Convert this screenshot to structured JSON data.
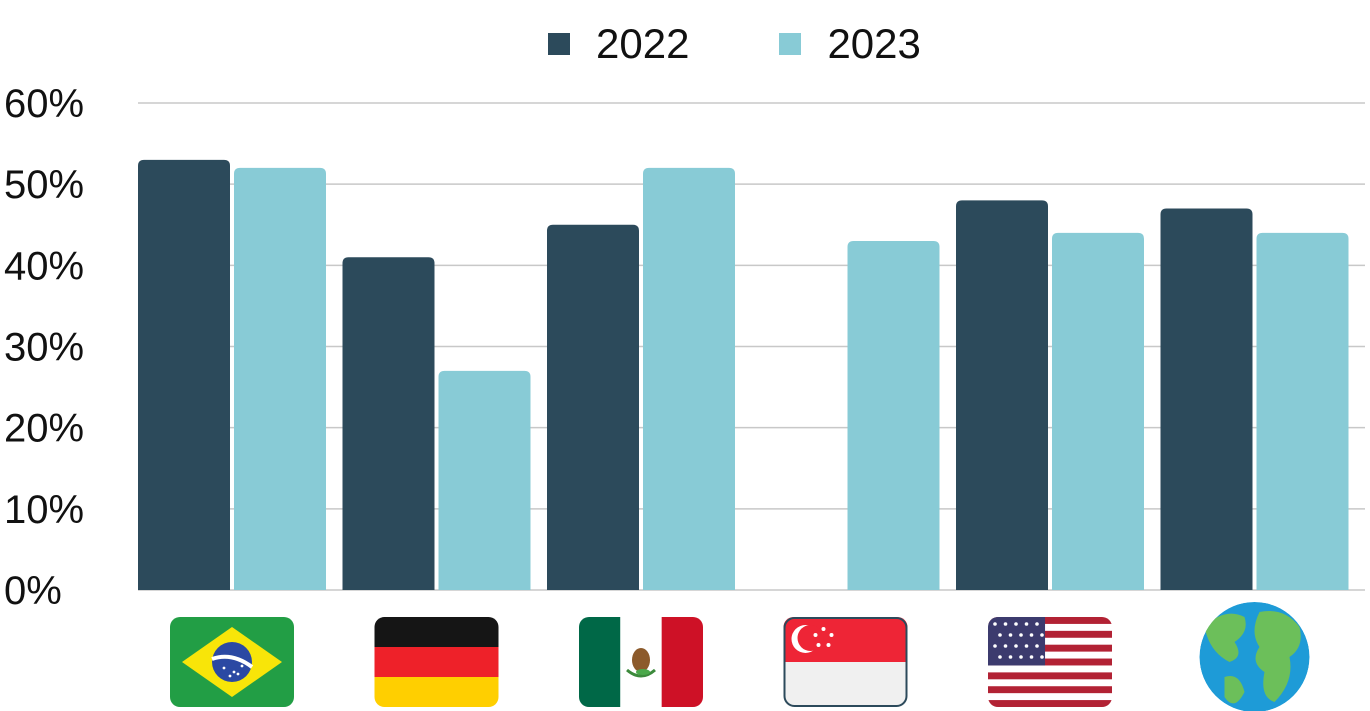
{
  "chart_data": {
    "type": "bar",
    "categories": [
      "Brazil",
      "Germany",
      "Mexico",
      "Singapore",
      "United States",
      "Global"
    ],
    "category_icons": [
      "brazil-flag-icon",
      "germany-flag-icon",
      "mexico-flag-icon",
      "singapore-flag-icon",
      "us-flag-icon",
      "globe-icon"
    ],
    "series": [
      {
        "name": "2022",
        "color": "#2c4a5b",
        "values": [
          53,
          41,
          45,
          null,
          48,
          47
        ]
      },
      {
        "name": "2023",
        "color": "#88cbd6",
        "values": [
          52,
          27,
          52,
          43,
          44,
          44
        ]
      }
    ],
    "ylim": [
      0,
      60
    ],
    "yticks": [
      0,
      10,
      20,
      30,
      40,
      50,
      60
    ],
    "ytick_labels": [
      "0%",
      "10%",
      "20%",
      "30%",
      "40%",
      "50%",
      "60%"
    ],
    "grid": true,
    "legend_position": "top-center"
  }
}
